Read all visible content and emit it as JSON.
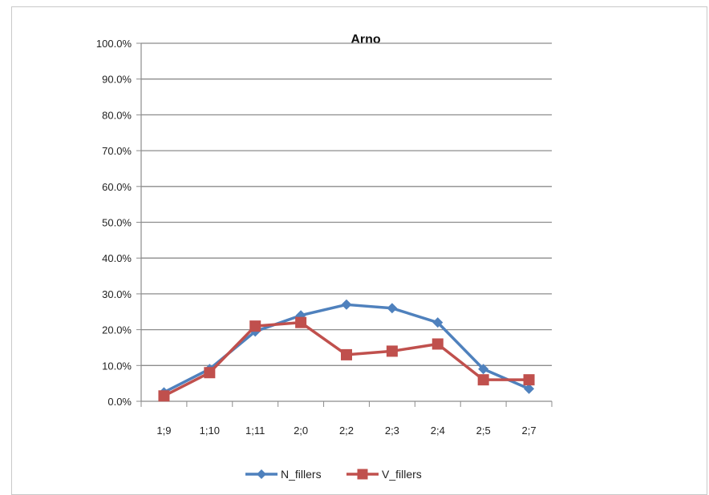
{
  "chart_data": {
    "type": "line",
    "title": "Arno",
    "xlabel": "",
    "ylabel": "",
    "categories": [
      "1;9",
      "1;10",
      "1;11",
      "2;0",
      "2;2",
      "2;3",
      "2;4",
      "2;5",
      "2;7"
    ],
    "ylim": [
      0,
      100
    ],
    "y_ticks": [
      "0.0%",
      "10.0%",
      "20.0%",
      "30.0%",
      "40.0%",
      "50.0%",
      "60.0%",
      "70.0%",
      "80.0%",
      "90.0%",
      "100.0%"
    ],
    "grid": "horizontal",
    "legend_position": "bottom",
    "series": [
      {
        "name": "N_fillers",
        "color": "#4f81bd",
        "marker": "diamond",
        "values": [
          2.5,
          9,
          19.5,
          24,
          27,
          26,
          22,
          9,
          3.5
        ]
      },
      {
        "name": "V_fillers",
        "color": "#c0504d",
        "marker": "square",
        "values": [
          1.5,
          8,
          21,
          22,
          13,
          14,
          16,
          6,
          6
        ]
      }
    ]
  }
}
